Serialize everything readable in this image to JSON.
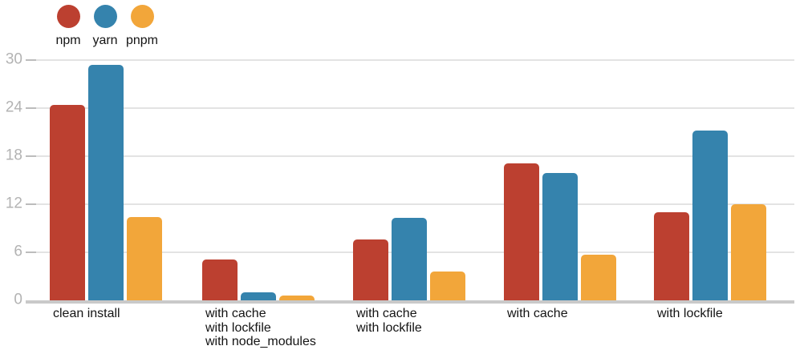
{
  "legend": {
    "position": "top-left",
    "items": [
      {
        "label": "npm",
        "color": "#bc4030"
      },
      {
        "label": "yarn",
        "color": "#3583ad"
      },
      {
        "label": "pnpm",
        "color": "#f2a63a"
      }
    ]
  },
  "chart_data": {
    "type": "bar",
    "title": "",
    "xlabel": "",
    "ylabel": "",
    "ylim": [
      0,
      30
    ],
    "yticks": [
      0,
      6,
      12,
      18,
      24,
      30
    ],
    "grid": true,
    "legend_position": "top-left",
    "categories": [
      [
        "clean install"
      ],
      [
        "with cache",
        "with lockfile",
        "with node_modules"
      ],
      [
        "with cache",
        "with lockfile"
      ],
      [
        "with cache"
      ],
      [
        "with lockfile"
      ]
    ],
    "series": [
      {
        "name": "npm",
        "color": "#bc4030",
        "values": [
          24.4,
          5.1,
          7.6,
          17.1,
          11.0
        ]
      },
      {
        "name": "yarn",
        "color": "#3583ad",
        "values": [
          29.4,
          1.0,
          10.3,
          15.9,
          21.2
        ]
      },
      {
        "name": "pnpm",
        "color": "#f2a63a",
        "values": [
          10.4,
          0.6,
          3.6,
          5.7,
          12.0
        ]
      }
    ],
    "axis_colors": {
      "gridline": "#e3e3e3",
      "baseline": "#c9c9c9",
      "tick": "#bcbcbc",
      "y_tick_label": "#b3b3b3",
      "x_label": "#141414"
    }
  }
}
